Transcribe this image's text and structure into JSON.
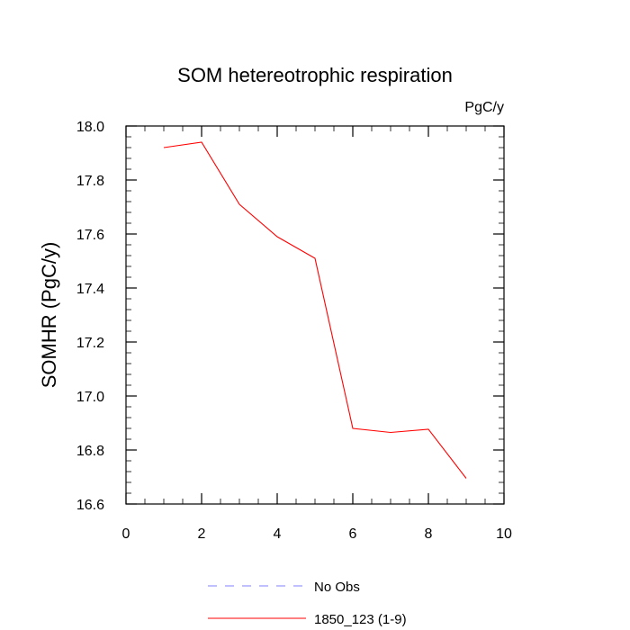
{
  "chart_data": {
    "type": "line",
    "title": "SOM hetereotrophic respiration",
    "units_label": "PgC/y",
    "ylabel": "SOMHR  (PgC/y)",
    "xlabel": "",
    "xlim": [
      0,
      10
    ],
    "ylim": [
      16.6,
      18.0
    ],
    "x_ticks": [
      0,
      2,
      4,
      6,
      8,
      10
    ],
    "x_tick_labels": [
      "0",
      "2",
      "4",
      "6",
      "8",
      "10"
    ],
    "x_minor_step": 0.5,
    "y_ticks": [
      16.6,
      16.8,
      17.0,
      17.2,
      17.4,
      17.6,
      17.8,
      18.0
    ],
    "y_tick_labels": [
      "16.6",
      "16.8",
      "17.0",
      "17.2",
      "17.4",
      "17.6",
      "17.8",
      "18.0"
    ],
    "y_minor_step": 0.04,
    "grid": false,
    "legend_position": "bottom",
    "series": [
      {
        "name": "No Obs",
        "color": "#8080ff",
        "dash": "dashed",
        "x": [],
        "values": []
      },
      {
        "name": "1850_123 (1-9)",
        "color": "#ff0000",
        "dash": "solid",
        "x": [
          1,
          2,
          3,
          4,
          5,
          6,
          7,
          8,
          9
        ],
        "values": [
          17.92,
          17.94,
          17.71,
          17.59,
          17.51,
          16.88,
          16.865,
          16.877,
          16.695
        ]
      }
    ]
  }
}
